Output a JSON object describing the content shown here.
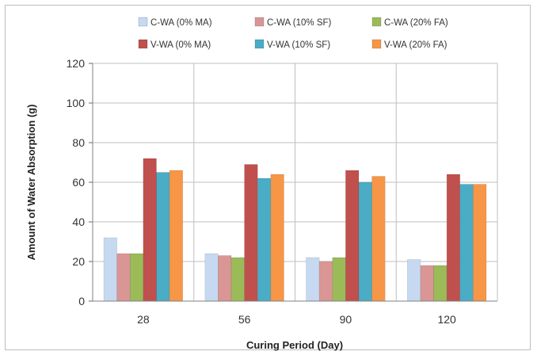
{
  "chart_data": {
    "type": "bar",
    "title": "",
    "xlabel": "Curing Period (Day)",
    "ylabel": "Amount of Water Absorption (g)",
    "categories": [
      "28",
      "56",
      "90",
      "120"
    ],
    "ylim": [
      0,
      120
    ],
    "yticks": [
      0,
      20,
      40,
      60,
      80,
      100,
      120
    ],
    "grid": true,
    "legend_position": "top",
    "series": [
      {
        "name": "C-WA (0% MA)",
        "color": "#c6d9f1",
        "values": [
          32,
          24,
          22,
          21
        ]
      },
      {
        "name": "C-WA (10% SF)",
        "color": "#d99694",
        "values": [
          24,
          23,
          20,
          18
        ]
      },
      {
        "name": "C-WA (20% FA)",
        "color": "#9bbb59",
        "values": [
          24,
          22,
          22,
          18
        ]
      },
      {
        "name": "V-WA (0% MA)",
        "color": "#c0504d",
        "values": [
          72,
          69,
          66,
          64
        ]
      },
      {
        "name": "V-WA (10% SF)",
        "color": "#4bacc6",
        "values": [
          65,
          62,
          60,
          59
        ]
      },
      {
        "name": "V-WA (20% FA)",
        "color": "#f79646",
        "values": [
          66,
          64,
          63,
          59
        ]
      }
    ]
  }
}
